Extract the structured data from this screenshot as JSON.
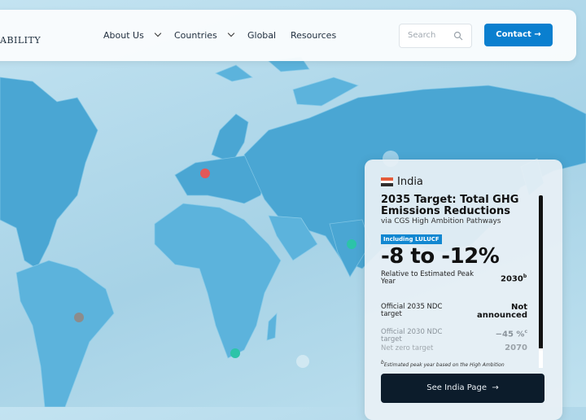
{
  "nav": {
    "logo": "ABILITY",
    "links": [
      "About Us",
      "Countries",
      "Global",
      "Resources"
    ],
    "search_placeholder": "Search",
    "contact": "Contact"
  },
  "card": {
    "country": "India",
    "title": "2035 Target: Total GHG Emissions Reductions",
    "subtitle": "via CGS High Ambition Pathways",
    "badge": "Including LULUCF",
    "value": "-8 to -12%",
    "value_note": "Relative to Estimated Peak Year",
    "peak_year": "2030",
    "peak_year_note": "b",
    "rows": [
      {
        "label": "Official 2035 NDC target",
        "value": "Not announced"
      },
      {
        "label": "Official 2030 NDC target",
        "value": "−45 %",
        "note": "c"
      },
      {
        "label": "Net zero target",
        "value": "2070"
      }
    ],
    "footnote_marker": "b",
    "footnote": "Estimated peak year based on the High Ambition",
    "button": "See India Page"
  }
}
